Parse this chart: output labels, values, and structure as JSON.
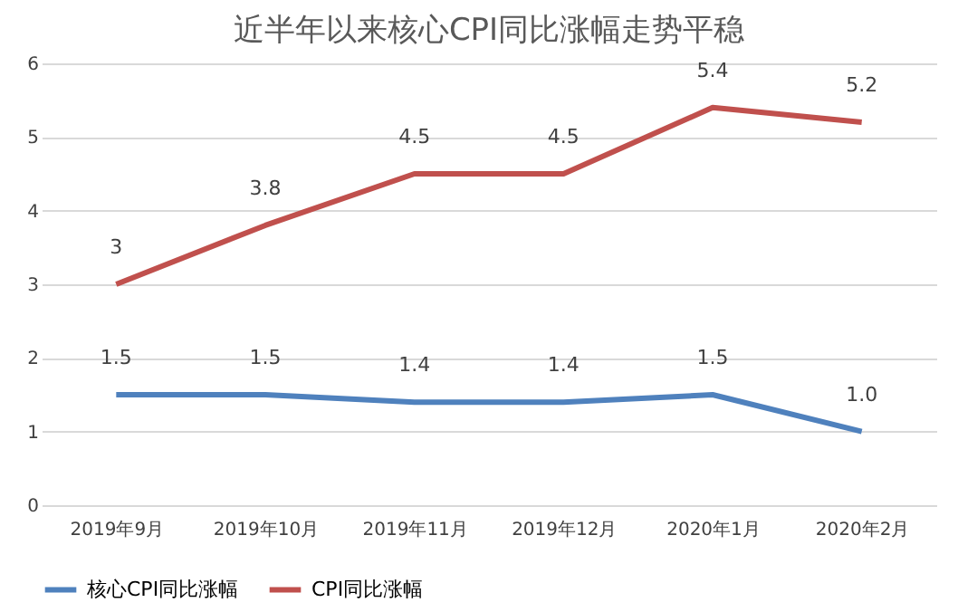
{
  "chart_data": {
    "type": "line",
    "title": "近半年以来核心CPI同比涨幅走势平稳",
    "categories": [
      "2019年9月",
      "2019年10月",
      "2019年11月",
      "2019年12月",
      "2020年1月",
      "2020年2月"
    ],
    "series": [
      {
        "name": "核心CPI同比涨幅",
        "color": "#4f81bd",
        "values": [
          1.5,
          1.5,
          1.4,
          1.4,
          1.5,
          1.0
        ],
        "value_labels": [
          "1.5",
          "1.5",
          "1.4",
          "1.4",
          "1.5",
          "1.0"
        ]
      },
      {
        "name": "CPI同比涨幅",
        "color": "#c0504d",
        "values": [
          3,
          3.8,
          4.5,
          4.5,
          5.4,
          5.2
        ],
        "value_labels": [
          "3",
          "3.8",
          "4.5",
          "4.5",
          "5.4",
          "5.2"
        ]
      }
    ],
    "ylim": [
      0,
      6
    ],
    "yticks": [
      0,
      1,
      2,
      3,
      4,
      5,
      6
    ],
    "grid": "y",
    "legend": "bottom",
    "marker": "none",
    "line_style": "solid"
  }
}
